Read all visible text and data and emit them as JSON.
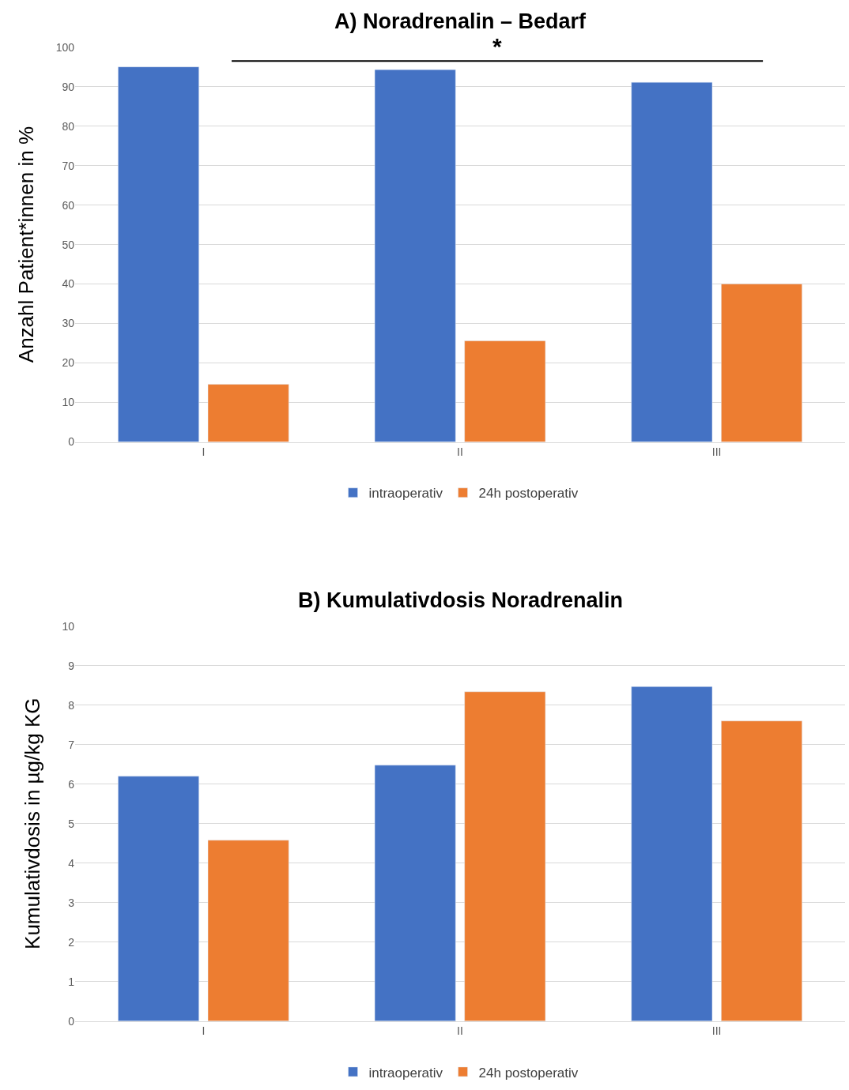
{
  "chart_data": [
    {
      "type": "bar",
      "title": "A) Noradrenalin – Bedarf",
      "ylabel": "Anzahl Patient*innen in %",
      "categories": [
        "I",
        "II",
        "III"
      ],
      "series": [
        {
          "name": "intraoperativ",
          "color": "#4472c4",
          "values": [
            95,
            94.3,
            91.1
          ]
        },
        {
          "name": "24h postoperativ",
          "color": "#ed7d31",
          "values": [
            14.6,
            25.6,
            40
          ]
        }
      ],
      "ylim": [
        0,
        100
      ],
      "yticks": [
        0,
        10,
        20,
        30,
        40,
        50,
        60,
        70,
        80,
        90,
        100
      ],
      "grid": "y",
      "legend": "bottom",
      "annotations": [
        "*"
      ]
    },
    {
      "type": "bar",
      "title": "B) Kumulativdosis Noradrenalin",
      "ylabel": "Kumulativdosis in µg/kg KG",
      "categories": [
        "I",
        "II",
        "III"
      ],
      "series": [
        {
          "name": "intraoperativ",
          "color": "#4472c4",
          "values": [
            6.2,
            6.48,
            8.47
          ]
        },
        {
          "name": "24h postoperativ",
          "color": "#ed7d31",
          "values": [
            4.58,
            8.34,
            7.6
          ]
        }
      ],
      "ylim": [
        0,
        10
      ],
      "yticks": [
        0,
        1,
        2,
        3,
        4,
        5,
        6,
        7,
        8,
        9,
        10
      ],
      "grid": "y",
      "legend": "bottom"
    }
  ]
}
